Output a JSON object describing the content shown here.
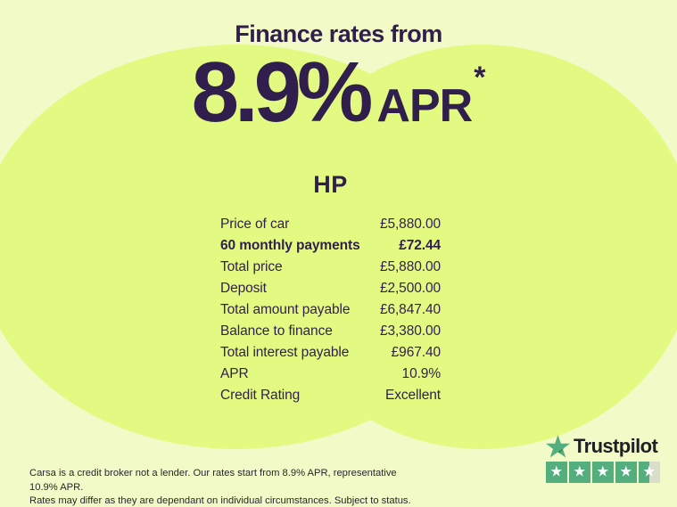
{
  "colors": {
    "background_light": "#f2fbc7",
    "blob_lime": "#e3fa82",
    "brand_purple": "#301e4d",
    "trustpilot_green": "#54ae7e",
    "trustpilot_star_empty": "#d9decb",
    "trustpilot_text": "#1f1f26"
  },
  "header": {
    "title": "Finance rates from",
    "rate_value": "8.9%",
    "rate_unit": "APR",
    "rate_footnote_marker": "*"
  },
  "finance": {
    "product_heading": "HP",
    "rows": [
      {
        "label": "Price of car",
        "value": "£5,880.00",
        "emphasis": false
      },
      {
        "label": "60 monthly payments",
        "value": "£72.44",
        "emphasis": true
      },
      {
        "label": "Total price",
        "value": "£5,880.00",
        "emphasis": false
      },
      {
        "label": "Deposit",
        "value": "£2,500.00",
        "emphasis": false
      },
      {
        "label": "Total amount payable",
        "value": "£6,847.40",
        "emphasis": false
      },
      {
        "label": "Balance to finance",
        "value": "£3,380.00",
        "emphasis": false
      },
      {
        "label": "Total interest payable",
        "value": "£967.40",
        "emphasis": false
      },
      {
        "label": "APR",
        "value": "10.9%",
        "emphasis": false
      },
      {
        "label": "Credit Rating",
        "value": "Excellent",
        "emphasis": false
      }
    ]
  },
  "trustpilot": {
    "brand": "Trustpilot",
    "rating": 4.5,
    "max_stars": 5,
    "star_glyph": "★",
    "logo_icon": "trustpilot-star"
  },
  "disclaimer": {
    "line1": "Carsa is a credit broker not a lender. Our rates start from 8.9% APR, representative 10.9% APR.",
    "line2": "Rates may differ as they are dependant on individual circumstances. Subject to status."
  }
}
